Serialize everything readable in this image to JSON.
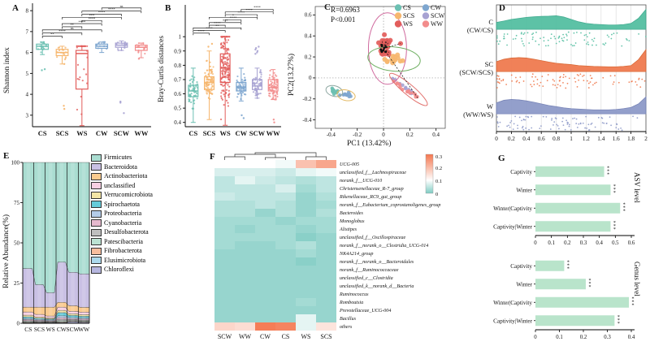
{
  "panels": {
    "a": "A",
    "b": "B",
    "c": "C",
    "d": "D",
    "e": "E",
    "f": "F",
    "g": "G"
  },
  "groups": [
    "CS",
    "SCS",
    "WS",
    "CW",
    "SCW",
    "WW"
  ],
  "colors": {
    "CS": "#6CC0B2",
    "SCS": "#F6B76F",
    "WS": "#E25D5B",
    "CW": "#7EA6CF",
    "SCW": "#A7A2D2",
    "WW": "#F28C8C"
  },
  "chart_data": {
    "panel_a": {
      "type": "boxplot",
      "ylabel": "Shannon index",
      "categories": [
        "CS",
        "SCS",
        "WS",
        "CW",
        "SCW",
        "WW"
      ],
      "ylim": [
        2.45,
        8.2
      ],
      "yticks": [
        3,
        4,
        5,
        6,
        7,
        8
      ],
      "sig_base": 6.78,
      "sig_step": 0.15,
      "boxes": [
        {
          "group": "CS",
          "lo": 5.9,
          "q1": 6.15,
          "median": 6.3,
          "q3": 6.4,
          "hi": 6.5,
          "outliers": [
            5.15,
            5.2
          ],
          "points_n": 16
        },
        {
          "group": "SCS",
          "lo": 5.45,
          "q1": 5.85,
          "median": 6.0,
          "q3": 6.15,
          "hi": 6.3,
          "outliers": [
            3.45,
            3.3,
            5.45
          ],
          "points_n": 16
        },
        {
          "group": "WS",
          "lo": 2.5,
          "q1": 4.25,
          "median": 5.95,
          "q3": 6.1,
          "hi": 6.3,
          "outliers": [],
          "points_n": 30
        },
        {
          "group": "CW",
          "lo": 6.0,
          "q1": 6.2,
          "median": 6.3,
          "q3": 6.4,
          "hi": 6.5,
          "outliers": [],
          "points_n": 14
        },
        {
          "group": "SCW",
          "lo": 6.1,
          "q1": 6.25,
          "median": 6.35,
          "q3": 6.45,
          "hi": 6.55,
          "outliers": [
            3.65,
            3.6,
            3.1
          ],
          "points_n": 14
        },
        {
          "group": "WW",
          "lo": 5.75,
          "q1": 6.1,
          "median": 6.25,
          "q3": 6.35,
          "hi": 6.45,
          "outliers": [
            5.7
          ],
          "points_n": 14
        }
      ],
      "comparisons": [
        {
          "a": 0,
          "b": 1,
          "label": "**"
        },
        {
          "a": 0,
          "b": 2,
          "label": "****"
        },
        {
          "a": 0,
          "b": 3,
          "label": "ns"
        },
        {
          "a": 1,
          "b": 2,
          "label": "**"
        },
        {
          "a": 1,
          "b": 3,
          "label": "****"
        },
        {
          "a": 2,
          "b": 3,
          "label": "****"
        },
        {
          "a": 1,
          "b": 4,
          "label": "***"
        },
        {
          "a": 2,
          "b": 4,
          "label": "****"
        },
        {
          "a": 2,
          "b": 5,
          "label": "****"
        },
        {
          "a": 3,
          "b": 5,
          "label": "ns"
        }
      ]
    },
    "panel_b": {
      "type": "boxplot",
      "ylabel": "Bray-Curtis distances",
      "categories": [
        "CS",
        "SCS",
        "WS",
        "CW",
        "SCW",
        "WW"
      ],
      "ylim": [
        0.37,
        1.2
      ],
      "yticks": [
        0.4,
        0.5,
        0.6,
        0.7,
        0.8,
        0.9,
        1
      ],
      "sig_base": 1.025,
      "sig_step": 0.0185,
      "boxes": [
        {
          "group": "CS",
          "lo": 0.4,
          "q1": 0.58,
          "median": 0.62,
          "q3": 0.66,
          "hi": 0.78,
          "outliers": [],
          "points_n": 60
        },
        {
          "group": "SCS",
          "lo": 0.42,
          "q1": 0.63,
          "median": 0.68,
          "q3": 0.72,
          "hi": 0.9,
          "outliers": [
            0.95,
            0.93
          ],
          "points_n": 90
        },
        {
          "group": "WS",
          "lo": 0.38,
          "q1": 0.68,
          "median": 0.78,
          "q3": 0.88,
          "hi": 1.0,
          "outliers": [],
          "points_n": 150
        },
        {
          "group": "CW",
          "lo": 0.55,
          "q1": 0.62,
          "median": 0.645,
          "q3": 0.68,
          "hi": 0.78,
          "outliers": [
            0.45,
            0.43
          ],
          "points_n": 60
        },
        {
          "group": "SCW",
          "lo": 0.57,
          "q1": 0.63,
          "median": 0.655,
          "q3": 0.7,
          "hi": 0.78,
          "outliers": [
            0.88,
            0.9,
            0.91,
            0.93,
            0.89,
            0.92
          ],
          "points_n": 60
        },
        {
          "group": "WW",
          "lo": 0.56,
          "q1": 0.62,
          "median": 0.645,
          "q3": 0.7,
          "hi": 0.77,
          "outliers": [
            0.42,
            0.4
          ],
          "points_n": 70
        }
      ],
      "comparisons": [
        {
          "a": 0,
          "b": 1,
          "label": "****"
        },
        {
          "a": 0,
          "b": 2,
          "label": "****"
        },
        {
          "a": 0,
          "b": 3,
          "label": "**"
        },
        {
          "a": 1,
          "b": 2,
          "label": "****"
        },
        {
          "a": 1,
          "b": 3,
          "label": "***"
        },
        {
          "a": 2,
          "b": 3,
          "label": "****"
        },
        {
          "a": 1,
          "b": 4,
          "label": "*"
        },
        {
          "a": 2,
          "b": 4,
          "label": "****"
        },
        {
          "a": 2,
          "b": 5,
          "label": "****"
        },
        {
          "a": 3,
          "b": 5,
          "label": "****"
        }
      ]
    },
    "panel_c": {
      "type": "scatter",
      "stats": {
        "r": "R=0.6963",
        "p": "P<0.001"
      },
      "xlabel": "PC1 (13.42%)",
      "ylabel": "PC2(13.27%)",
      "xlim": [
        -0.52,
        0.47
      ],
      "ylim": [
        -0.48,
        0.68
      ],
      "xticks": [
        -0.4,
        -0.2,
        0,
        0.2,
        0.4
      ],
      "yticks": [
        -0.4,
        -0.2,
        0,
        0.2,
        0.4,
        0.6
      ],
      "legend_col1": [
        "CS",
        "SCS",
        "WS"
      ],
      "legend_col2": [
        "CW",
        "SCW",
        "WW"
      ],
      "centroid": [
        0.0,
        0.28
      ],
      "clusters": [
        {
          "group": "WS",
          "center": [
            0.02,
            0.3
          ],
          "spread": [
            0.085,
            0.095
          ],
          "n": 30
        },
        {
          "group": "SCS",
          "center": [
            0.08,
            0.17
          ],
          "spread": [
            0.07,
            0.045
          ],
          "n": 14
        },
        {
          "group": "CS",
          "center": [
            -0.375,
            -0.125
          ],
          "spread": [
            0.035,
            0.026
          ],
          "n": 12
        },
        {
          "group": "CW",
          "center": [
            -0.285,
            -0.165
          ],
          "spread": [
            0.035,
            0.026
          ],
          "n": 12
        },
        {
          "group": "SCW",
          "center": [
            0.13,
            -0.06
          ],
          "dir": [
            0.1,
            -0.09
          ],
          "spread": [
            0.015,
            0.015
          ],
          "n": 10
        },
        {
          "group": "WW",
          "center": [
            0.19,
            -0.13
          ],
          "dir": [
            0.12,
            -0.1
          ],
          "spread": [
            0.018,
            0.015
          ],
          "n": 14
        }
      ],
      "ellipses": [
        {
          "cx": 0.03,
          "cy": 0.28,
          "rx": 0.145,
          "ry": 0.34,
          "rot": 0,
          "color": "#D06A9E"
        },
        {
          "cx": 0.08,
          "cy": 0.18,
          "rx": 0.2,
          "ry": 0.115,
          "rot": 5,
          "color": "#6FAF62"
        },
        {
          "cx": 0.19,
          "cy": -0.11,
          "rx": 0.185,
          "ry": 0.05,
          "rot": 40,
          "color": "#E2726E"
        },
        {
          "cx": -0.375,
          "cy": -0.125,
          "rx": 0.065,
          "ry": 0.05,
          "rot": 15,
          "color": "#8FA8A2"
        },
        {
          "cx": -0.285,
          "cy": -0.165,
          "rx": 0.07,
          "ry": 0.05,
          "rot": 12,
          "color": "#E3B964"
        }
      ]
    },
    "panel_d": {
      "type": "ridgeline",
      "xticks": [
        0,
        0.2,
        0.4,
        0.6,
        0.8,
        1,
        1.2,
        1.4,
        1.6,
        1.8,
        2
      ],
      "xlim": [
        0,
        2
      ],
      "rows": [
        {
          "label": "C",
          "sublabel": "(CW/CS)",
          "color": "#55BFA2",
          "stroke": "#3BA98C",
          "density": [
            0.35,
            0.42,
            0.5,
            0.55,
            0.6,
            0.63,
            0.65,
            0.66,
            0.68,
            0.62,
            0.5,
            0.38,
            0.3,
            0.26,
            0.24,
            0.22,
            0.22,
            0.24,
            0.3,
            0.55,
            1.0
          ]
        },
        {
          "label": "SC",
          "sublabel": "(SCW/SCS)",
          "color": "#F07B50",
          "stroke": "#D8642F",
          "density": [
            0.5,
            0.62,
            0.68,
            0.7,
            0.68,
            0.62,
            0.55,
            0.48,
            0.42,
            0.38,
            0.35,
            0.3,
            0.28,
            0.26,
            0.25,
            0.24,
            0.24,
            0.26,
            0.3,
            0.6,
            1.1
          ]
        },
        {
          "label": "W",
          "sublabel": "(WW/WS)",
          "color": "#8E9AC9",
          "stroke": "#7380B5",
          "density": [
            0.55,
            0.68,
            0.72,
            0.7,
            0.65,
            0.58,
            0.5,
            0.42,
            0.36,
            0.3,
            0.26,
            0.24,
            0.22,
            0.2,
            0.2,
            0.2,
            0.22,
            0.26,
            0.32,
            0.5,
            0.85
          ]
        }
      ]
    },
    "panel_e": {
      "type": "stacked-area",
      "ylabel": "Relative Abundance(%)",
      "yticks": [
        0,
        25,
        50,
        75,
        100
      ],
      "categories": [
        "CS",
        "SCS",
        "WS",
        "CW",
        "SCW",
        "WW"
      ],
      "series": [
        {
          "name": "Firmicutes",
          "color": "#AADDD1",
          "values": [
            66,
            76,
            81,
            62,
            69,
            70
          ]
        },
        {
          "name": "Bacteroidota",
          "color": "#C9C0E4",
          "values": [
            24,
            14,
            9,
            25,
            21,
            21
          ]
        },
        {
          "name": "Actinobacteriota",
          "color": "#FBCB8F",
          "values": [
            3,
            4.5,
            5.5,
            3,
            3.5,
            3
          ]
        },
        {
          "name": "unclassified",
          "color": "#F8CFE2",
          "values": [
            2,
            1.6,
            1.2,
            2,
            1.6,
            1.6
          ]
        },
        {
          "name": "Verrucomicrobiota",
          "color": "#F3E5A5",
          "values": [
            1,
            0.8,
            0.6,
            1.4,
            1,
            1
          ]
        },
        {
          "name": "Spirochaetota",
          "color": "#66CBD9",
          "values": [
            1,
            0.7,
            0.5,
            2,
            1.2,
            1
          ]
        },
        {
          "name": "Proteobacteria",
          "color": "#B4CCE9",
          "values": [
            0.8,
            0.6,
            0.5,
            1.2,
            0.8,
            0.8
          ]
        },
        {
          "name": "Cyanobacteria",
          "color": "#E6B9CE",
          "values": [
            0.6,
            0.5,
            0.4,
            1,
            0.6,
            0.6
          ]
        },
        {
          "name": "Desulfobacterota",
          "color": "#BFBFBF",
          "values": [
            0.5,
            0.4,
            0.3,
            0.8,
            0.5,
            0.5
          ]
        },
        {
          "name": "Patescibacteria",
          "color": "#BCE3D3",
          "values": [
            0.4,
            0.3,
            0.2,
            0.6,
            0.4,
            0.4
          ]
        },
        {
          "name": "Fibrobacterota",
          "color": "#F8BD9D",
          "values": [
            0.3,
            0.25,
            0.2,
            0.4,
            0.3,
            0.3
          ]
        },
        {
          "name": "Elusimicrobiota",
          "color": "#ACD9EC",
          "values": [
            0.2,
            0.2,
            0.15,
            0.3,
            0.2,
            0.2
          ]
        },
        {
          "name": "Chloroflexi",
          "color": "#B6B6DF",
          "values": [
            0.2,
            0.15,
            0.45,
            0.3,
            0.9,
            0.6
          ]
        }
      ]
    },
    "panel_f": {
      "type": "heatmap",
      "columns": [
        "SCW",
        "WW",
        "CW",
        "CS",
        "WS",
        "SCS"
      ],
      "rows": [
        "UCG-005",
        "unclassified_f__Lachnospiraceae",
        "norank_f__UCG-010",
        "Christensenellaceae_R-7_group",
        "Rikenellaceae_RC9_gut_group",
        "norank_f__Eubacterium_coprostanoligenes_group",
        "Bacteroides",
        "Monoglobus",
        "Alistipes",
        "unclassified_f__Oscillospiraceae",
        "norank_f__norank_o__Clostridia_UCG-014",
        "NK4A214_group",
        "norank_f__norank_o__Bacteroidales",
        "norank_f__Ruminococcaceae",
        "unclassified_c__Clostridia",
        "unclassified_k__norank_d__Bacteria",
        "Ruminococcus",
        "Romboutsia",
        "Prevotellaceae_UCG-004",
        "Bacillus",
        "others"
      ],
      "values": [
        [
          0.1,
          0.1,
          0.1,
          0.09,
          0.19,
          0.23
        ],
        [
          0.07,
          0.07,
          0.07,
          0.06,
          0.08,
          0.09
        ],
        [
          0.05,
          0.08,
          0.06,
          0.05,
          0.04,
          0.05
        ],
        [
          0.05,
          0.05,
          0.05,
          0.07,
          0.03,
          0.05
        ],
        [
          0.06,
          0.05,
          0.05,
          0.05,
          0.02,
          0.04
        ],
        [
          0.04,
          0.04,
          0.05,
          0.04,
          0.02,
          0.03
        ],
        [
          0.04,
          0.04,
          0.02,
          0.04,
          0.02,
          0.04
        ],
        [
          0.03,
          0.03,
          0.03,
          0.02,
          0.03,
          0.03
        ],
        [
          0.03,
          0.02,
          0.03,
          0.03,
          0.02,
          0.03
        ],
        [
          0.03,
          0.03,
          0.03,
          0.03,
          0.01,
          0.02
        ],
        [
          0.03,
          0.02,
          0.02,
          0.03,
          0.04,
          0.02
        ],
        [
          0.02,
          0.02,
          0.02,
          0.02,
          0.03,
          0.02
        ],
        [
          0.02,
          0.02,
          0.02,
          0.02,
          0.01,
          0.02
        ],
        [
          0.02,
          0.02,
          0.02,
          0.02,
          0.02,
          0.02
        ],
        [
          0.02,
          0.02,
          0.02,
          0.02,
          0.02,
          0.02
        ],
        [
          0.02,
          0.02,
          0.02,
          0.02,
          0.02,
          0.02
        ],
        [
          0.02,
          0.02,
          0.02,
          0.02,
          0.02,
          0.02
        ],
        [
          0.02,
          0.02,
          0.02,
          0.02,
          0.03,
          0.02
        ],
        [
          0.02,
          0.02,
          0.02,
          0.02,
          0.02,
          0.02
        ],
        [
          0.02,
          0.02,
          0.02,
          0.02,
          0.08,
          0.02
        ],
        [
          0.16,
          0.15,
          0.29,
          0.28,
          0.08,
          0.14
        ]
      ],
      "colorbar": {
        "ticks": [
          "0.3",
          "0.2",
          "0.1",
          "0"
        ],
        "high": "#F4764E",
        "mid": "#FFFFFF",
        "low": "#7DCBC2"
      }
    },
    "panel_g": [
      {
        "type": "bar",
        "level_label": "ASV level",
        "categories": [
          "Captivity",
          "Winter",
          "Winter|Captivity",
          "Captivity|Winter"
        ],
        "values": [
          0.43,
          0.47,
          0.53,
          0.47
        ],
        "sig": [
          "***",
          "***",
          "***",
          "***"
        ],
        "xlim": [
          0,
          0.6
        ],
        "xticks": [
          0,
          0.1,
          0.2,
          0.3,
          0.4,
          0.5,
          0.6
        ],
        "bar_color": "#B9E4CB"
      },
      {
        "type": "bar",
        "level_label": "Genus level",
        "categories": [
          "Captivity",
          "Winter",
          "Winter|Captivity",
          "Captivity|Winter"
        ],
        "values": [
          0.12,
          0.21,
          0.39,
          0.33
        ],
        "sig": [
          "***",
          "***",
          "***",
          "***"
        ],
        "xlim": [
          0,
          0.4
        ],
        "xticks": [
          0,
          0.1,
          0.2,
          0.3,
          0.4
        ],
        "bar_color": "#B9E4CB"
      }
    ]
  }
}
